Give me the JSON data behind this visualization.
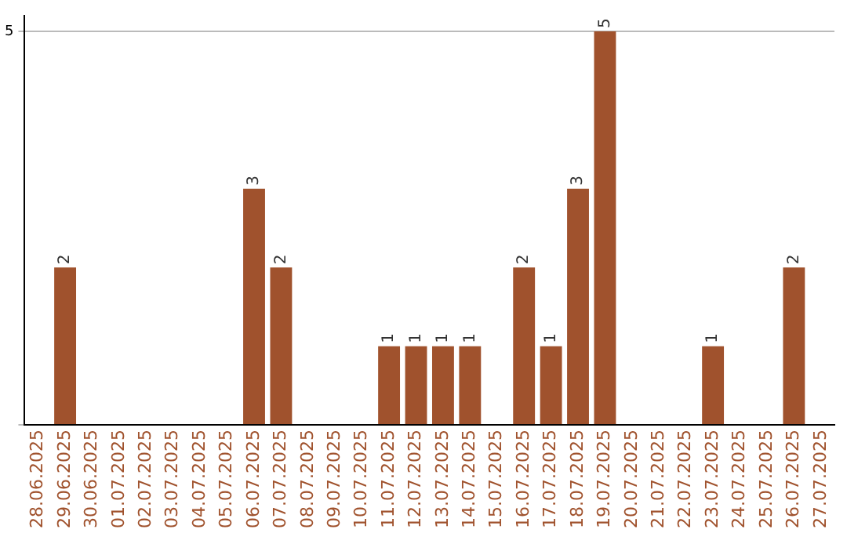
{
  "chart_data": {
    "type": "bar",
    "categories": [
      "28.06.2025",
      "29.06.2025",
      "30.06.2025",
      "01.07.2025",
      "02.07.2025",
      "03.07.2025",
      "04.07.2025",
      "05.07.2025",
      "06.07.2025",
      "07.07.2025",
      "08.07.2025",
      "09.07.2025",
      "10.07.2025",
      "11.07.2025",
      "12.07.2025",
      "13.07.2025",
      "14.07.2025",
      "15.07.2025",
      "16.07.2025",
      "17.07.2025",
      "18.07.2025",
      "19.07.2025",
      "20.07.2025",
      "21.07.2025",
      "22.07.2025",
      "23.07.2025",
      "24.07.2025",
      "25.07.2025",
      "26.07.2025",
      "27.07.2025"
    ],
    "values": [
      0,
      2,
      0,
      0,
      0,
      0,
      0,
      0,
      3,
      2,
      0,
      0,
      0,
      1,
      1,
      1,
      1,
      0,
      2,
      1,
      3,
      5,
      0,
      0,
      0,
      1,
      0,
      0,
      2,
      0
    ],
    "value_labels": [
      null,
      "2",
      null,
      null,
      null,
      null,
      null,
      null,
      "3",
      "2",
      null,
      null,
      null,
      "1",
      "1",
      "1",
      "1",
      null,
      "2",
      "1",
      "3",
      "5",
      null,
      null,
      null,
      "1",
      null,
      null,
      "2",
      null
    ],
    "color": "#a0522d",
    "ylim": [
      0,
      5.2
    ],
    "yticks": [
      {
        "value": 0,
        "label": null
      },
      5
    ],
    "grid": "y",
    "legend": false
  }
}
